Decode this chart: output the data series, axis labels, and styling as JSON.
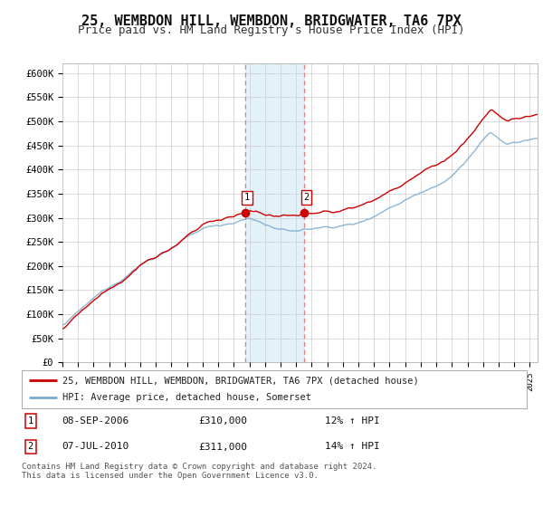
{
  "title": "25, WEMBDON HILL, WEMBDON, BRIDGWATER, TA6 7PX",
  "subtitle": "Price paid vs. HM Land Registry's House Price Index (HPI)",
  "title_fontsize": 11,
  "subtitle_fontsize": 9,
  "background_color": "#ffffff",
  "plot_bg_color": "#ffffff",
  "grid_color": "#cccccc",
  "shade_color": "#ddeef8",
  "vline_color": "#e08080",
  "event1_date_num": 2006.71,
  "event2_date_num": 2010.5,
  "price_paid_values": [
    310000,
    311000
  ],
  "marker_labels": [
    "1",
    "2"
  ],
  "event1": {
    "date": "08-SEP-2006",
    "price": "£310,000",
    "hpi_change": "12% ↑ HPI"
  },
  "event2": {
    "date": "07-JUL-2010",
    "price": "£311,000",
    "hpi_change": "14% ↑ HPI"
  },
  "legend_line1": "25, WEMBDON HILL, WEMBDON, BRIDGWATER, TA6 7PX (detached house)",
  "legend_line2": "HPI: Average price, detached house, Somerset",
  "footer": "Contains HM Land Registry data © Crown copyright and database right 2024.\nThis data is licensed under the Open Government Licence v3.0.",
  "ylim": [
    0,
    620000
  ],
  "yticks": [
    0,
    50000,
    100000,
    150000,
    200000,
    250000,
    300000,
    350000,
    400000,
    450000,
    500000,
    550000,
    600000
  ],
  "red_line_color": "#cc0000",
  "blue_line_color": "#7aaacc"
}
